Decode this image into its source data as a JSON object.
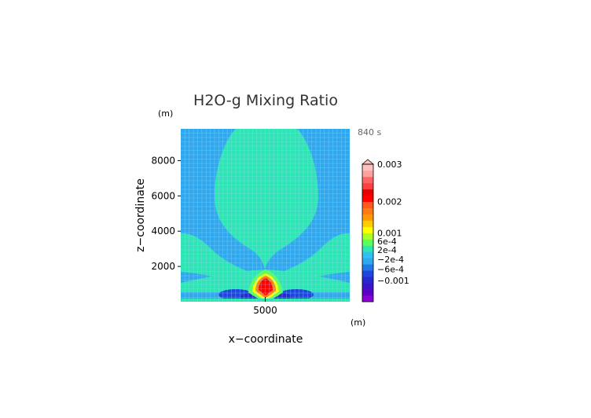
{
  "chart_data": {
    "type": "contour",
    "title": "H2O-g Mixing Ratio",
    "time_label": "840 s",
    "xlabel": "x−coordinate",
    "ylabel": "z−coordinate",
    "xunit": "(m)",
    "yunit": "(m)",
    "xlim": [
      0,
      10000
    ],
    "ylim": [
      0,
      9800
    ],
    "xticks": [
      {
        "value": 5000,
        "label": "5000"
      }
    ],
    "yticks": [
      {
        "value": 2000,
        "label": "2000"
      },
      {
        "value": 4000,
        "label": "4000"
      },
      {
        "value": 6000,
        "label": "6000"
      },
      {
        "value": 8000,
        "label": "8000"
      }
    ],
    "grid": true,
    "colorbar": {
      "levels": [
        {
          "color": "#8a00d6"
        },
        {
          "color": "#5a00c8"
        },
        {
          "color": "#3c14c8"
        },
        {
          "color": "#2828d2"
        },
        {
          "color": "#1e46dc"
        },
        {
          "color": "#1e78e6"
        },
        {
          "color": "#2fa8ee"
        },
        {
          "color": "#32c0f0"
        },
        {
          "color": "#2ee6b4"
        },
        {
          "color": "#5aff5a"
        },
        {
          "color": "#aaff28"
        },
        {
          "color": "#ffff00"
        },
        {
          "color": "#ffcc00"
        },
        {
          "color": "#ff9900"
        },
        {
          "color": "#ff7a10"
        },
        {
          "color": "#ff5a1e"
        },
        {
          "color": "#ff0000"
        },
        {
          "color": "#e60000"
        },
        {
          "color": "#ff4040"
        },
        {
          "color": "#ff6464"
        },
        {
          "color": "#ffa0a0"
        },
        {
          "color": "#ffc0c0"
        }
      ],
      "labels": [
        {
          "text": "0.003",
          "level": 22
        },
        {
          "text": "0.002",
          "level": 16
        },
        {
          "text": "0.001",
          "level": 11
        },
        {
          "text": "6e-4",
          "level": 9.7
        },
        {
          "text": "2e-4",
          "level": 8.3
        },
        {
          "text": "−2e-4",
          "level": 6.8
        },
        {
          "text": "−6e-4",
          "level": 5.2
        },
        {
          "text": "−0.001",
          "level": 3.4
        }
      ]
    },
    "colors": {
      "background": "#2fa8ee",
      "plume": "#2ee6b4",
      "dark_blue": "#1e46dc",
      "deep_blue": "#2828d2",
      "green": "#5aff5a",
      "yellow": "#ffff00",
      "orange": "#ff7a10",
      "red": "#ff0000",
      "grid": "#9ad6f7"
    }
  }
}
